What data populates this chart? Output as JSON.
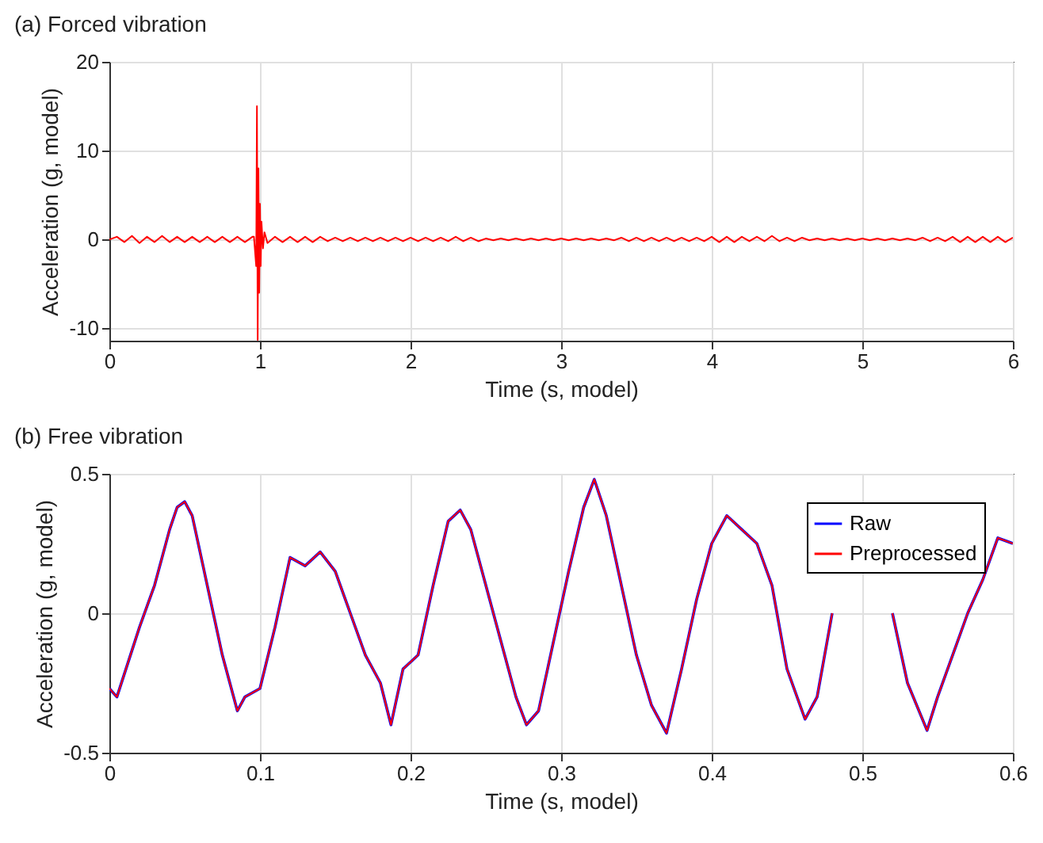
{
  "chart_data": [
    {
      "type": "line",
      "title": "(a) Forced vibration",
      "xlabel": "Time (s, model)",
      "ylabel": "Acceleration (g, model)",
      "xlim": [
        0,
        6
      ],
      "xticks": [
        0,
        1,
        2,
        3,
        4,
        5,
        6
      ],
      "ylim": [
        -11.4,
        20
      ],
      "yticks": [
        -10,
        0,
        10,
        20
      ],
      "grid": true,
      "series": [
        {
          "color": "#ff0000",
          "x": [
            0,
            0.05,
            0.1,
            0.15,
            0.2,
            0.25,
            0.3,
            0.35,
            0.4,
            0.45,
            0.5,
            0.55,
            0.6,
            0.65,
            0.7,
            0.75,
            0.8,
            0.85,
            0.9,
            0.95,
            0.96,
            0.975,
            0.98,
            0.985,
            0.99,
            0.995,
            1.0,
            1.005,
            1.01,
            1.02,
            1.03,
            1.05,
            1.1,
            1.15,
            1.2,
            1.25,
            1.3,
            1.35,
            1.4,
            1.45,
            1.5,
            1.55,
            1.6,
            1.65,
            1.7,
            1.75,
            1.8,
            1.85,
            1.9,
            1.95,
            2.0,
            2.05,
            2.1,
            2.15,
            2.2,
            2.25,
            2.3,
            2.35,
            2.4,
            2.45,
            2.5,
            2.55,
            2.6,
            2.65,
            2.7,
            2.75,
            2.8,
            2.85,
            2.9,
            2.95,
            3.0,
            3.05,
            3.1,
            3.15,
            3.2,
            3.25,
            3.3,
            3.35,
            3.4,
            3.45,
            3.5,
            3.55,
            3.6,
            3.65,
            3.7,
            3.75,
            3.8,
            3.85,
            3.9,
            3.95,
            4.0,
            4.05,
            4.1,
            4.15,
            4.2,
            4.25,
            4.3,
            4.35,
            4.4,
            4.45,
            4.5,
            4.55,
            4.6,
            4.65,
            4.7,
            4.75,
            4.8,
            4.85,
            4.9,
            4.95,
            5.0,
            5.05,
            5.1,
            5.15,
            5.2,
            5.25,
            5.3,
            5.35,
            5.4,
            5.45,
            5.5,
            5.55,
            5.6,
            5.65,
            5.7,
            5.75,
            5.8,
            5.85,
            5.9,
            5.95,
            6.0
          ],
          "values": [
            0,
            0.3,
            -0.3,
            0.4,
            -0.4,
            0.3,
            -0.3,
            0.4,
            -0.3,
            0.3,
            -0.3,
            0.3,
            -0.3,
            0.3,
            -0.3,
            0.3,
            -0.3,
            0.3,
            -0.3,
            0.3,
            0.3,
            -3,
            15,
            -11.3,
            8,
            -6,
            4,
            -3,
            2,
            -1,
            0.8,
            -0.4,
            0.3,
            -0.3,
            0.3,
            -0.3,
            0.3,
            -0.3,
            0.3,
            -0.2,
            0.2,
            -0.2,
            0.2,
            -0.2,
            0.2,
            -0.2,
            0.2,
            -0.2,
            0.2,
            -0.2,
            0.2,
            -0.2,
            0.2,
            -0.2,
            0.2,
            -0.2,
            0.3,
            -0.2,
            0.2,
            -0.2,
            0.1,
            -0.1,
            0.1,
            -0.1,
            0.1,
            -0.1,
            0.1,
            -0.1,
            0.1,
            -0.1,
            0.1,
            -0.1,
            0.1,
            -0.1,
            0.1,
            -0.1,
            0.1,
            -0.1,
            0.2,
            -0.2,
            0.2,
            -0.2,
            0.2,
            -0.2,
            0.2,
            -0.2,
            0.2,
            -0.2,
            0.2,
            -0.2,
            0.3,
            -0.3,
            0.3,
            -0.3,
            0.3,
            -0.2,
            0.3,
            -0.2,
            0.4,
            -0.2,
            0.2,
            -0.2,
            0.2,
            -0.1,
            0.1,
            -0.1,
            0.1,
            -0.1,
            0.1,
            -0.1,
            0.1,
            -0.1,
            0.1,
            -0.1,
            0.1,
            -0.1,
            0.1,
            -0.1,
            0.2,
            -0.2,
            0.2,
            -0.2,
            0.3,
            -0.3,
            0.3,
            -0.3,
            0.3,
            -0.3,
            0.3,
            -0.3,
            0.2
          ]
        }
      ]
    },
    {
      "type": "line",
      "title": "(b) Free vibration",
      "xlabel": "Time (s, model)",
      "ylabel": "Acceleration (g, model)",
      "xlim": [
        0,
        0.6
      ],
      "xticks": [
        0,
        0.1,
        0.2,
        0.3,
        0.4,
        0.5,
        0.6
      ],
      "ylim": [
        -0.5,
        0.5
      ],
      "yticks": [
        -0.5,
        0,
        0.5
      ],
      "grid": true,
      "legend": "top right",
      "x": [
        0,
        0.005,
        0.02,
        0.03,
        0.04,
        0.045,
        0.05,
        0.055,
        0.065,
        0.075,
        0.085,
        0.09,
        0.1,
        0.11,
        0.12,
        0.13,
        0.14,
        0.15,
        0.16,
        0.17,
        0.18,
        0.187,
        0.195,
        0.205,
        0.215,
        0.225,
        0.233,
        0.24,
        0.25,
        0.26,
        0.27,
        0.277,
        0.285,
        0.295,
        0.305,
        0.315,
        0.322,
        0.33,
        0.34,
        0.35,
        0.36,
        0.37,
        0.38,
        0.39,
        0.4,
        0.41,
        0.42,
        0.43,
        0.44,
        0.45,
        0.462,
        0.47,
        0.48,
        0.49,
        0.5,
        0.51,
        0.52,
        0.53,
        0.543,
        0.55,
        0.56,
        0.57,
        0.58,
        0.59,
        0.6
      ],
      "series": [
        {
          "name": "Raw",
          "color": "#0000ff",
          "values": [
            -0.27,
            -0.3,
            -0.05,
            0.1,
            0.3,
            0.38,
            0.4,
            0.35,
            0.1,
            -0.15,
            -0.35,
            -0.3,
            -0.27,
            -0.05,
            0.2,
            0.17,
            0.22,
            0.15,
            0.0,
            -0.15,
            -0.25,
            -0.4,
            -0.2,
            -0.15,
            0.1,
            0.33,
            0.37,
            0.3,
            0.1,
            -0.1,
            -0.3,
            -0.4,
            -0.35,
            -0.1,
            0.15,
            0.38,
            0.48,
            0.35,
            0.1,
            -0.15,
            -0.33,
            -0.43,
            -0.2,
            0.05,
            0.25,
            0.35,
            0.3,
            0.25,
            0.1,
            -0.2,
            -0.38,
            -0.3,
            0.0,
            null,
            null,
            null,
            0.0,
            -0.25,
            -0.42,
            -0.3,
            -0.15,
            0.0,
            0.12,
            0.27,
            0.25
          ]
        },
        {
          "name": "Preprocessed",
          "color": "#ff0000",
          "values": [
            -0.27,
            -0.3,
            -0.05,
            0.1,
            0.3,
            0.38,
            0.4,
            0.35,
            0.1,
            -0.15,
            -0.35,
            -0.3,
            -0.27,
            -0.05,
            0.2,
            0.17,
            0.22,
            0.15,
            0.0,
            -0.15,
            -0.25,
            -0.4,
            -0.2,
            -0.15,
            0.1,
            0.33,
            0.37,
            0.3,
            0.1,
            -0.1,
            -0.3,
            -0.4,
            -0.35,
            -0.1,
            0.15,
            0.38,
            0.48,
            0.35,
            0.1,
            -0.15,
            -0.33,
            -0.43,
            -0.2,
            0.05,
            0.25,
            0.35,
            0.3,
            0.25,
            0.1,
            -0.2,
            -0.38,
            -0.3,
            0.0,
            null,
            null,
            null,
            0.0,
            -0.25,
            -0.42,
            -0.3,
            -0.15,
            0.0,
            0.12,
            0.27,
            0.25
          ]
        }
      ]
    }
  ]
}
